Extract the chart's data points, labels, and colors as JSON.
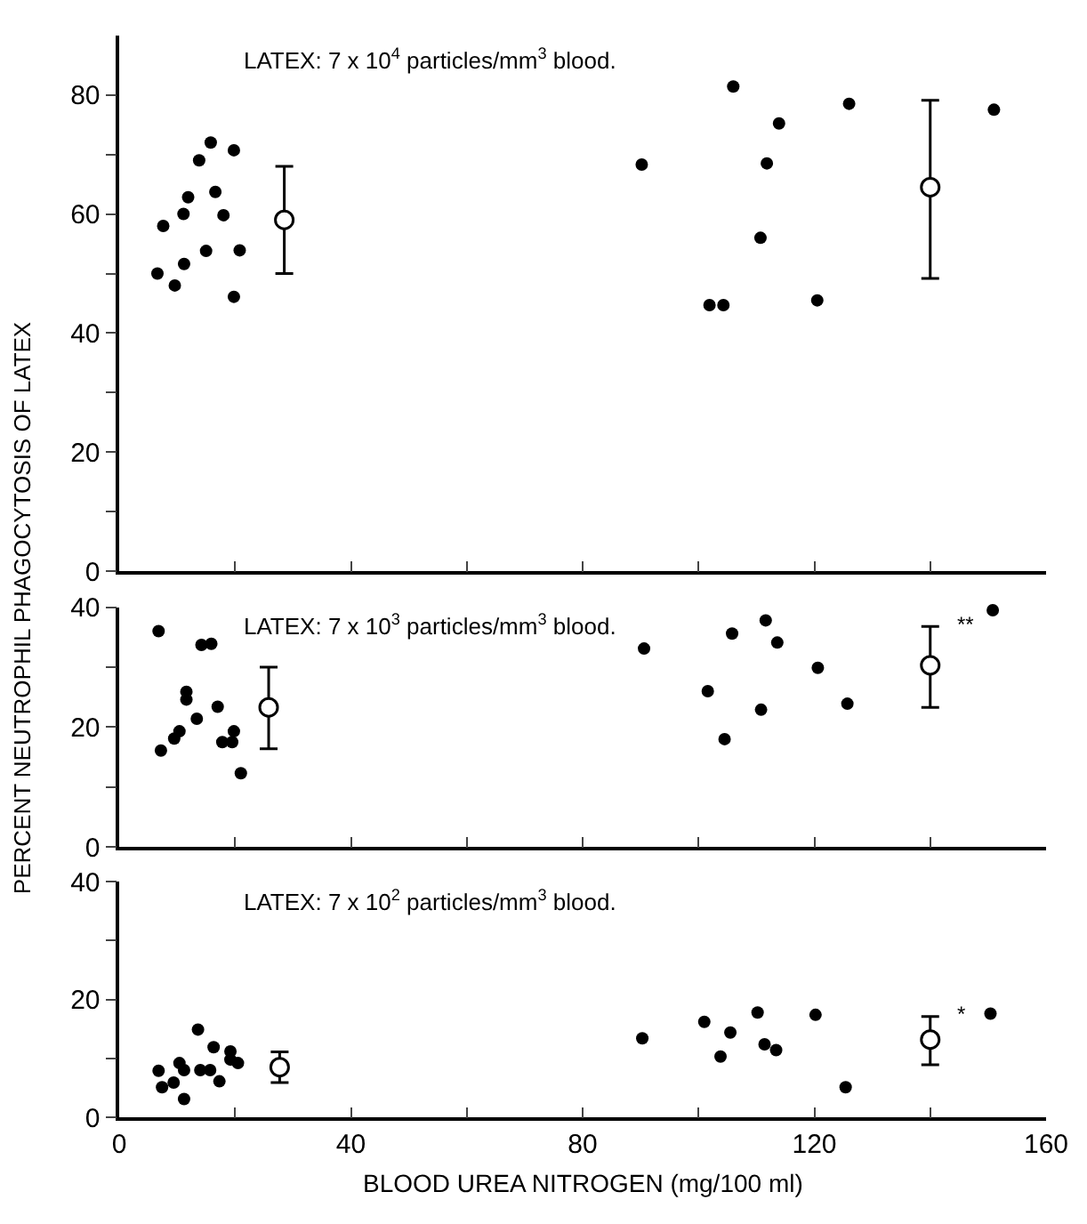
{
  "chart_data": [
    {
      "type": "scatter",
      "title": "LATEX: 7 x 10$^{4}$ particles/mm$^{3}$ blood.",
      "ylabel": "PERCENT NEUTROPHIL PHAGOCYTOSIS OF LATEX",
      "marker": "circle",
      "tick_labels": "y",
      "xlim": [
        0,
        160
      ],
      "ylim": [
        0,
        90
      ],
      "xticks": [
        0,
        {
          "value": 20,
          "label": null
        },
        40,
        {
          "value": 60,
          "label": null
        },
        80,
        {
          "value": 100,
          "label": null
        },
        120,
        {
          "value": 140,
          "label": null
        },
        160
      ],
      "yticks": [
        0,
        {
          "value": 10,
          "label": null
        },
        20,
        {
          "value": 30,
          "label": null
        },
        40,
        {
          "value": 50,
          "label": null
        },
        60,
        {
          "value": 70,
          "label": null
        },
        80
      ],
      "series": [
        {
          "color": "#000000",
          "x": [
            6.6,
            7.6,
            9.6,
            11.1,
            11.2,
            11.9,
            13.8,
            15,
            15.8,
            16.6,
            18,
            19.8,
            19.8,
            20.8,
            90.2,
            101.9,
            104.3,
            106,
            110.7,
            111.8,
            113.9,
            120.5,
            126,
            151
          ],
          "values": [
            50,
            58,
            48,
            60,
            51.6,
            62.8,
            69,
            53.8,
            72,
            63.7,
            59.8,
            70.7,
            46.1,
            53.9,
            68.3,
            44.7,
            44.7,
            81.4,
            56,
            68.5,
            75.2,
            45.5,
            78.5,
            77.5
          ]
        },
        {
          "color": "#000000",
          "x": [
            28.5,
            140
          ],
          "values": [
            59,
            64.5
          ],
          "errors": [
            [
              50,
              68
            ],
            [
              49.2,
              79.1
            ]
          ]
        }
      ]
    },
    {
      "type": "scatter",
      "title": "LATEX: 7 x 10$^{3}$ particles/mm$^{3}$ blood.",
      "marker": "circle",
      "tick_labels": "y",
      "xlim": [
        0,
        160
      ],
      "ylim": [
        0,
        40
      ],
      "xticks": [
        0,
        {
          "value": 20,
          "label": null
        },
        40,
        {
          "value": 60,
          "label": null
        },
        80,
        {
          "value": 100,
          "label": null
        },
        120,
        {
          "value": 140,
          "label": null
        },
        160
      ],
      "yticks": [
        0,
        {
          "value": 10,
          "label": null
        },
        20,
        {
          "value": 30,
          "label": null
        },
        40
      ],
      "annotations": [
        "**"
      ],
      "series": [
        {
          "color": "#000000",
          "x": [
            6.8,
            7.2,
            9.5,
            10.4,
            11.6,
            11.6,
            13.4,
            14.2,
            15.9,
            17,
            17.8,
            19.5,
            19.8,
            21,
            90.6,
            101.6,
            104.5,
            105.8,
            110.8,
            111.6,
            113.6,
            120.6,
            125.7,
            150.8
          ],
          "values": [
            36,
            16.1,
            18.1,
            19.3,
            25.9,
            24.6,
            21.4,
            33.7,
            33.9,
            23.4,
            17.5,
            17.5,
            19.3,
            12.3,
            33.1,
            26,
            18,
            35.6,
            22.9,
            37.8,
            34.1,
            29.9,
            23.9,
            39.5
          ]
        },
        {
          "color": "#000000",
          "x": [
            25.8,
            140
          ],
          "values": [
            23.3,
            30.3
          ],
          "errors": [
            [
              16.4,
              30
            ],
            [
              23.3,
              36.8
            ]
          ]
        }
      ]
    },
    {
      "type": "scatter",
      "title": "LATEX: 7 x 10$^{2}$ particles/mm$^{3}$ blood.",
      "xlabel": "BLOOD UREA NITROGEN (mg/100 ml)",
      "marker": "circle",
      "xlim": [
        0,
        160
      ],
      "ylim": [
        0,
        40
      ],
      "xticks": [
        0,
        {
          "value": 20,
          "label": null
        },
        40,
        {
          "value": 60,
          "label": null
        },
        80,
        {
          "value": 100,
          "label": null
        },
        120,
        {
          "value": 140,
          "label": null
        },
        160
      ],
      "yticks": [
        0,
        {
          "value": 10,
          "label": null
        },
        20,
        {
          "value": 30,
          "label": null
        },
        40
      ],
      "annotations": [
        "*"
      ],
      "series": [
        {
          "color": "#000000",
          "x": [
            6.8,
            7.4,
            9.4,
            10.4,
            11.2,
            11.2,
            13.6,
            14,
            15.7,
            16.3,
            17.3,
            19.2,
            19.2,
            20.5,
            90.3,
            101,
            103.8,
            105.5,
            110.2,
            111.4,
            113.4,
            120.2,
            125.4,
            150.4
          ],
          "values": [
            7.9,
            5.1,
            5.9,
            9.2,
            8,
            3.1,
            14.9,
            8,
            8,
            11.9,
            6.1,
            11.2,
            9.8,
            9.2,
            13.4,
            16.2,
            10.3,
            14.4,
            17.8,
            12.4,
            11.4,
            17.4,
            5.1,
            17.6
          ]
        },
        {
          "color": "#000000",
          "x": [
            27.7,
            140
          ],
          "values": [
            8.5,
            13.2
          ],
          "errors": [
            [
              5.9,
              11.1
            ],
            [
              8.9,
              17.1
            ]
          ]
        }
      ]
    }
  ]
}
